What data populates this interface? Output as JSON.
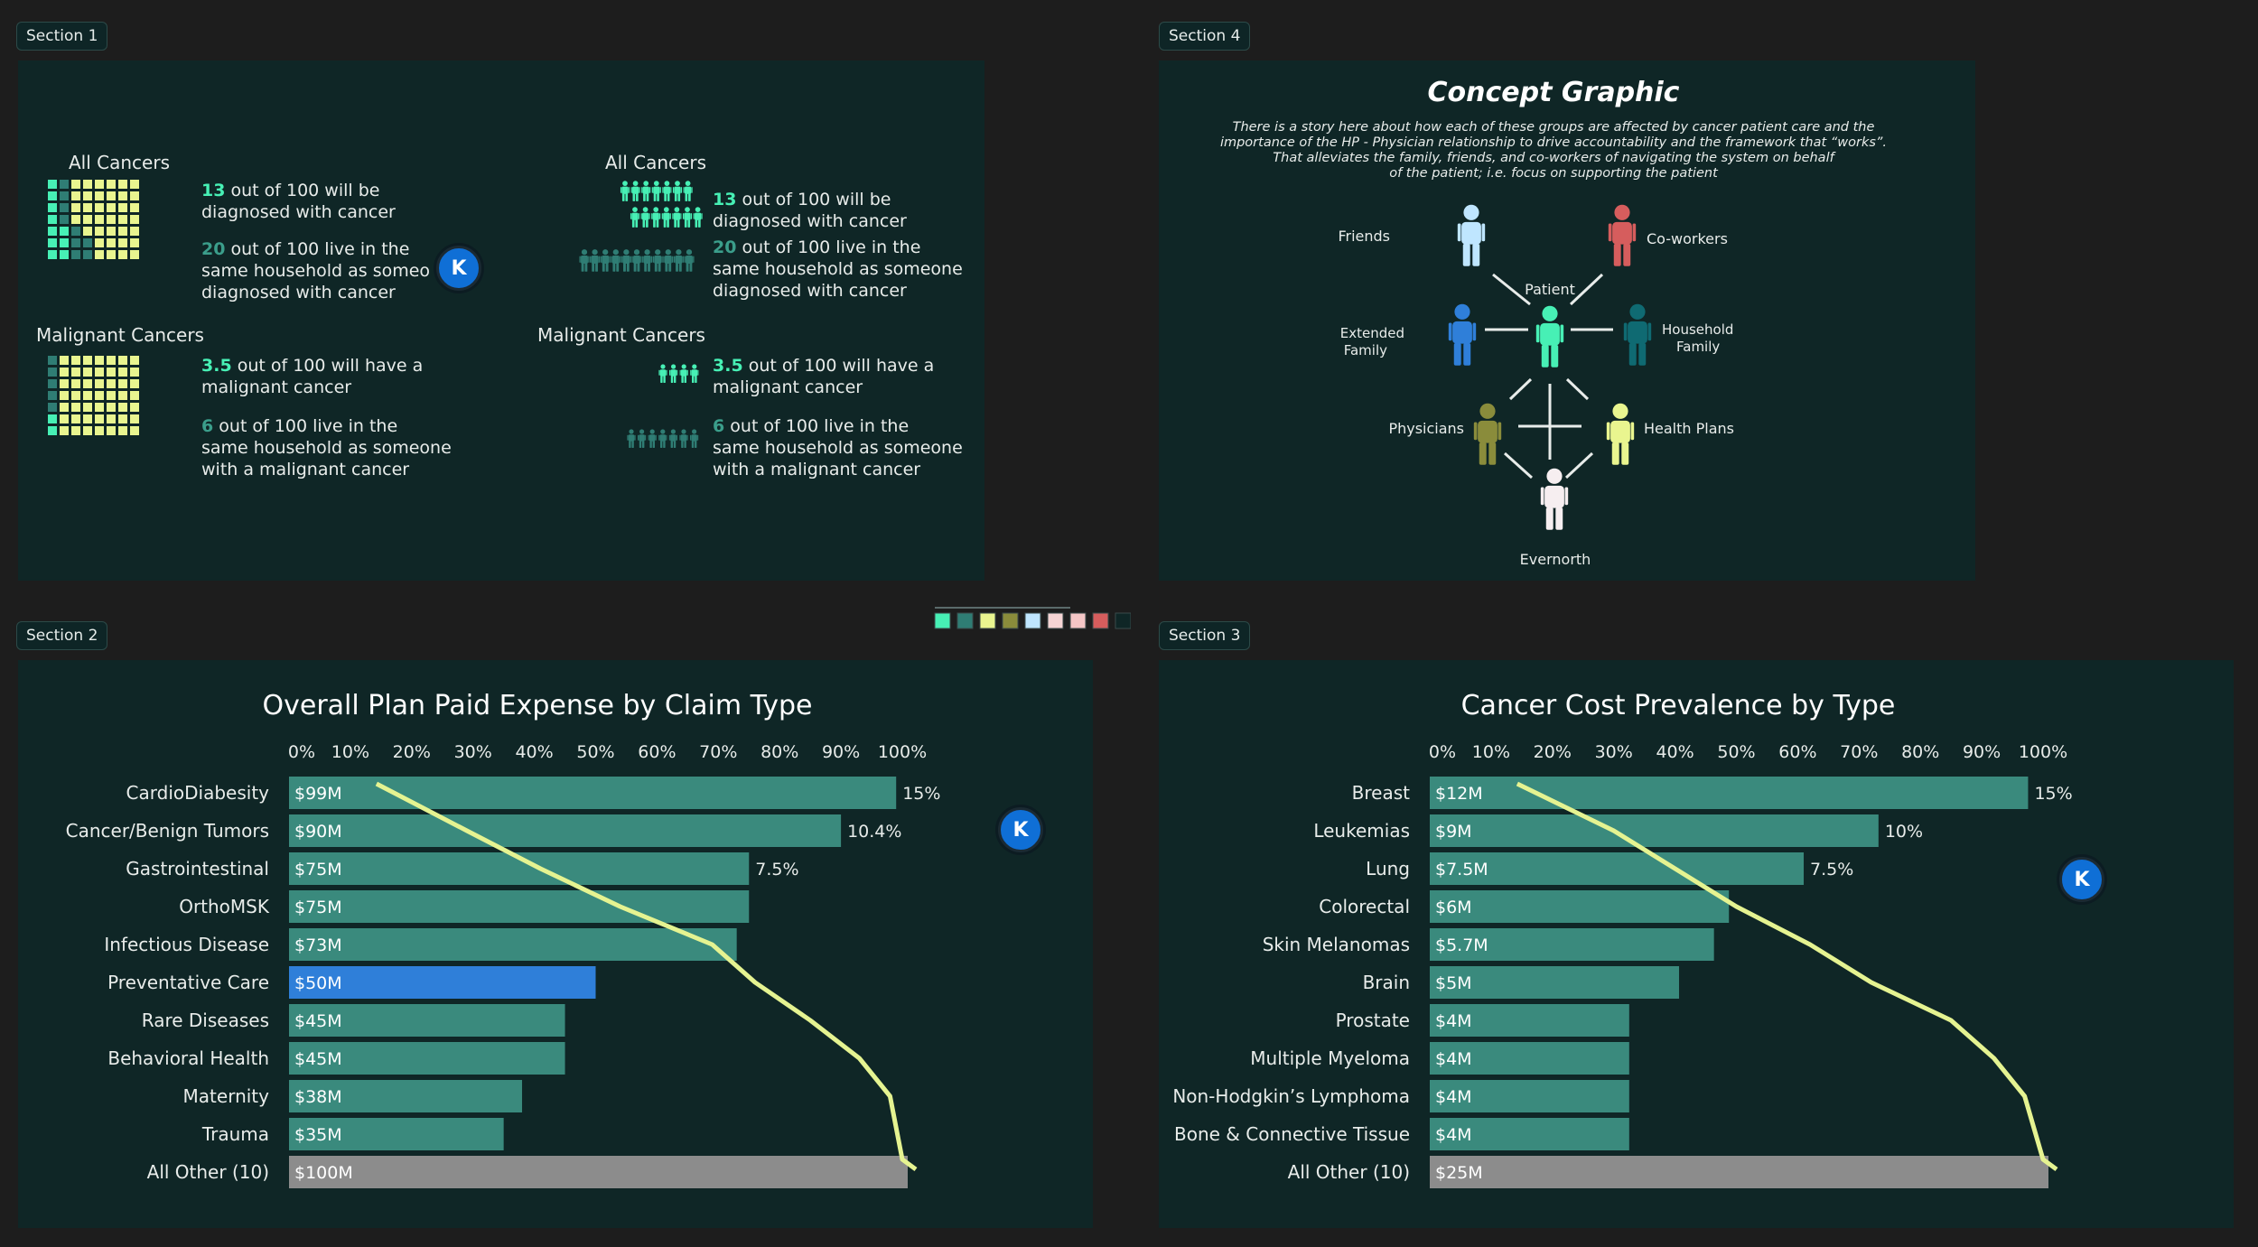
{
  "sections": {
    "s1": "Section 1",
    "s2": "Section 2",
    "s3": "Section 3",
    "s4": "Section 4"
  },
  "avatar_label": "K",
  "colors": {
    "teal": "#47f0b5",
    "midteal": "#2f7d74",
    "yellow": "#e9f58f",
    "olive": "#8a8c3b",
    "lightblue": "#bfe6ff",
    "pink": "#f6d4d4",
    "red": "#d65d5d",
    "blue": "#2f7fd9",
    "bar": "#3a8a7d",
    "grey": "#8c8c8c",
    "line": "#e5f391",
    "bg": "#0f2626"
  },
  "section1": {
    "left": {
      "all_title": "All Cancers",
      "all_line1_num": "13",
      "all_line1_a": " out of 100 will be",
      "all_line1_b": "diagnosed with cancer",
      "all_line2_num": "20",
      "all_line2_a": " out of 100 live in the",
      "all_line2_b": "same household as someo",
      "all_line2_c": "diagnosed with cancer",
      "mal_title": "Malignant Cancers",
      "mal_line1_num": "3.5",
      "mal_line1_a": " out of 100 will have a",
      "mal_line1_b": "malignant cancer",
      "mal_line2_num": "6",
      "mal_line2_a": " out of 100 live in the",
      "mal_line2_b": "same household as someone",
      "mal_line2_c": "with a malignant cancer"
    },
    "right": {
      "all_title": "All Cancers",
      "all_line1_num": "13",
      "all_line1_a": " out of 100 will be",
      "all_line1_b": "diagnosed with cancer",
      "all_line2_num": "20",
      "all_line2_a": " out of 100 live in the",
      "all_line2_b": "same household as someone",
      "all_line2_c": "diagnosed with cancer",
      "mal_title": "Malignant Cancers",
      "mal_line1_num": "3.5",
      "mal_line1_a": " out of 100 will have a",
      "mal_line1_b": "malignant cancer",
      "mal_line2_num": "6",
      "mal_line2_a": " out of 100 live in the",
      "mal_line2_b": "same household as someone",
      "mal_line2_c": "with a malignant cancer"
    }
  },
  "section4": {
    "title": "Concept Graphic",
    "desc": [
      "There is a story here about how each of these groups are affected by cancer patient care and the",
      "importance of the HP - Physician relationship to drive accountability and the framework that “works”.",
      "That alleviates the family, friends, and co-workers of navigating the system on behalf",
      "of the patient; i.e. focus on supporting the patient"
    ],
    "nodes": {
      "friends": "Friends",
      "coworkers": "Co-workers",
      "patient": "Patient",
      "extended1": "Extended",
      "extended2": "Family",
      "household1": "Household",
      "household2": "Family",
      "physicians": "Physicians",
      "healthplans": "Health Plans",
      "evernorth": "Evernorth"
    }
  },
  "palette": [
    "#47f0b5",
    "#2f7d74",
    "#e9f58f",
    "#8a8c3b",
    "#bfe6ff",
    "#f6d4d4",
    "#f4c6c6",
    "#d65d5d",
    "#0f2626"
  ],
  "chart_data": [
    {
      "type": "bar",
      "title": "Overall Plan Paid Expense by Claim Type",
      "axis_ticks": [
        "0%",
        "10%",
        "20%",
        "30%",
        "40%",
        "50%",
        "60%",
        "70%",
        "80%",
        "90%",
        "100%"
      ],
      "categories": [
        "CardioDiabesity",
        "Cancer/Benign Tumors",
        "Gastrointestinal",
        "OrthoMSK",
        "Infectious Disease",
        "Preventative Care",
        "Rare Diseases",
        "Behavioral Health",
        "Maternity",
        "Trauma",
        "All Other (10)"
      ],
      "values": [
        99,
        90,
        75,
        75,
        73,
        50,
        45,
        45,
        38,
        35,
        100
      ],
      "bar_labels": [
        "$99M",
        "$90M",
        "$75M",
        "$75M",
        "$73M",
        "$50M",
        "$45M",
        "$45M",
        "$38M",
        "$35M",
        "$100M"
      ],
      "pct_labels": [
        "15%",
        "10.4%",
        "7.5%",
        "",
        "",
        "",
        "",
        "",
        "",
        "",
        ""
      ],
      "highlight_index": 5,
      "other_index": 10,
      "line_pct": [
        15,
        29,
        41,
        54,
        69,
        76,
        85,
        93,
        98,
        100
      ],
      "xlim": [
        0,
        100
      ],
      "scale_max": 100
    },
    {
      "type": "bar",
      "title": "Cancer Cost Prevalence by Type",
      "axis_ticks": [
        "0%",
        "10%",
        "20%",
        "30%",
        "40%",
        "50%",
        "60%",
        "70%",
        "80%",
        "90%",
        "100%"
      ],
      "categories": [
        "Breast",
        "Leukemias",
        "Lung",
        "Colorectal",
        "Skin Melanomas",
        "Brain",
        "Prostate",
        "Multiple Myeloma",
        "Non-Hodgkin’s Lymphoma",
        "Bone & Connective Tissue",
        "All Other (10)"
      ],
      "values": [
        12,
        9,
        7.5,
        6,
        5.7,
        5,
        4,
        4,
        4,
        4,
        25
      ],
      "bar_labels": [
        "$12M",
        "$9M",
        "$7.5M",
        "$6M",
        "$5.7M",
        "$5M",
        "$4M",
        "$4M",
        "$4M",
        "$4M",
        "$25M"
      ],
      "pct_labels": [
        "15%",
        "10%",
        "7.5%",
        "",
        "",
        "",
        "",
        "",
        "",
        "",
        ""
      ],
      "highlight_index": -1,
      "other_index": 10,
      "line_pct": [
        15,
        30,
        40,
        50,
        62,
        72,
        85,
        92,
        97,
        100
      ],
      "xlim": [
        0,
        100
      ],
      "scale_max": 12.3
    }
  ]
}
